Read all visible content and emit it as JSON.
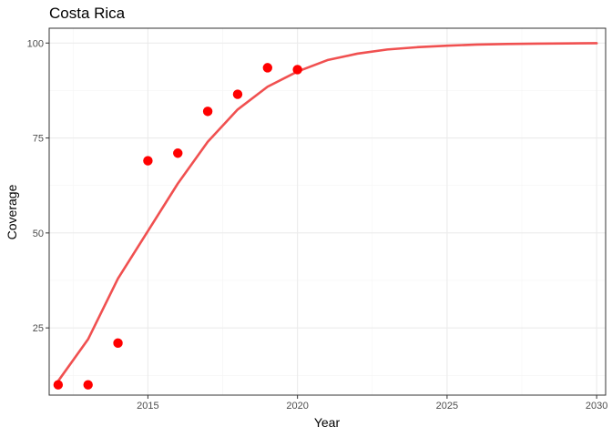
{
  "chart_data": {
    "type": "scatter",
    "title": "Costa Rica",
    "xlabel": "Year",
    "ylabel": "Coverage",
    "xlim": [
      2011.7,
      2030.3
    ],
    "ylim": [
      7.3,
      103.9
    ],
    "x_ticks": [
      2015,
      2020,
      2025,
      2030
    ],
    "x_minor_ticks": [
      2012.5,
      2017.5,
      2022.5,
      2027.5
    ],
    "y_ticks": [
      25,
      50,
      75,
      100
    ],
    "y_minor_ticks": [
      12.5,
      37.5,
      62.5,
      87.5
    ],
    "x_tick_labels": [
      "2015",
      "2020",
      "2025",
      "2030"
    ],
    "y_tick_labels": [
      "25",
      "50",
      "75",
      "100"
    ],
    "grid": true,
    "legend": "none",
    "series": [
      {
        "kind": "points",
        "color": "#ff0000",
        "x": [
          2012,
          2013,
          2014,
          2015,
          2016,
          2017,
          2018,
          2019,
          2020
        ],
        "y": [
          10,
          10,
          21,
          69,
          71,
          82,
          86.5,
          93.5,
          93
        ]
      },
      {
        "kind": "line",
        "color": "#f05050",
        "x": [
          2012,
          2013,
          2014,
          2015,
          2016,
          2017,
          2018,
          2019,
          2020,
          2021,
          2022,
          2023,
          2024,
          2025,
          2026,
          2027,
          2028,
          2029,
          2030
        ],
        "y": [
          11,
          22,
          38,
          50.5,
          63,
          74,
          82.5,
          88.5,
          92.5,
          95.5,
          97.2,
          98.3,
          98.9,
          99.3,
          99.6,
          99.75,
          99.85,
          99.9,
          99.95
        ]
      }
    ]
  }
}
